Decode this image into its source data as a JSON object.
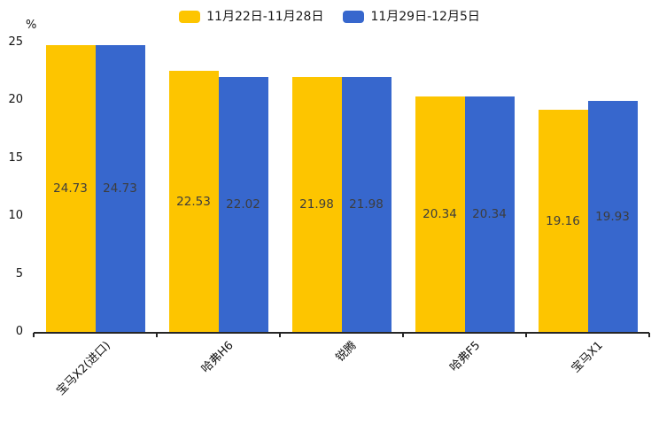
{
  "chart_data": {
    "type": "bar",
    "title": "",
    "unit_label": "%",
    "categories": [
      "宝马X2(进口)",
      "哈弗H6",
      "锐腾",
      "哈弗F5",
      "宝马X1"
    ],
    "series": [
      {
        "name": "11月22日-11月28日",
        "color": "#FDC500",
        "values": [
          24.73,
          22.53,
          21.98,
          20.34,
          19.16
        ]
      },
      {
        "name": "11月29日-12月5日",
        "color": "#3767CD",
        "values": [
          24.73,
          22.02,
          21.98,
          20.34,
          19.93
        ]
      }
    ],
    "value_labels": [
      "24.73",
      "22.53",
      "21.98",
      "20.34",
      "19.16",
      "24.73",
      "22.02",
      "21.98",
      "20.34",
      "19.93"
    ],
    "ylim": [
      0,
      25
    ],
    "yticks": [
      0,
      5,
      10,
      15,
      20,
      25
    ],
    "grid": false,
    "legend_position": "top",
    "value_label_position": "inside-middle",
    "colors": {
      "series1": "#FDC500",
      "series2": "#3767CD",
      "axis": "#262626",
      "value_text": "#3d3d3d",
      "tick_text": "#111111",
      "background": "#ffffff"
    }
  }
}
